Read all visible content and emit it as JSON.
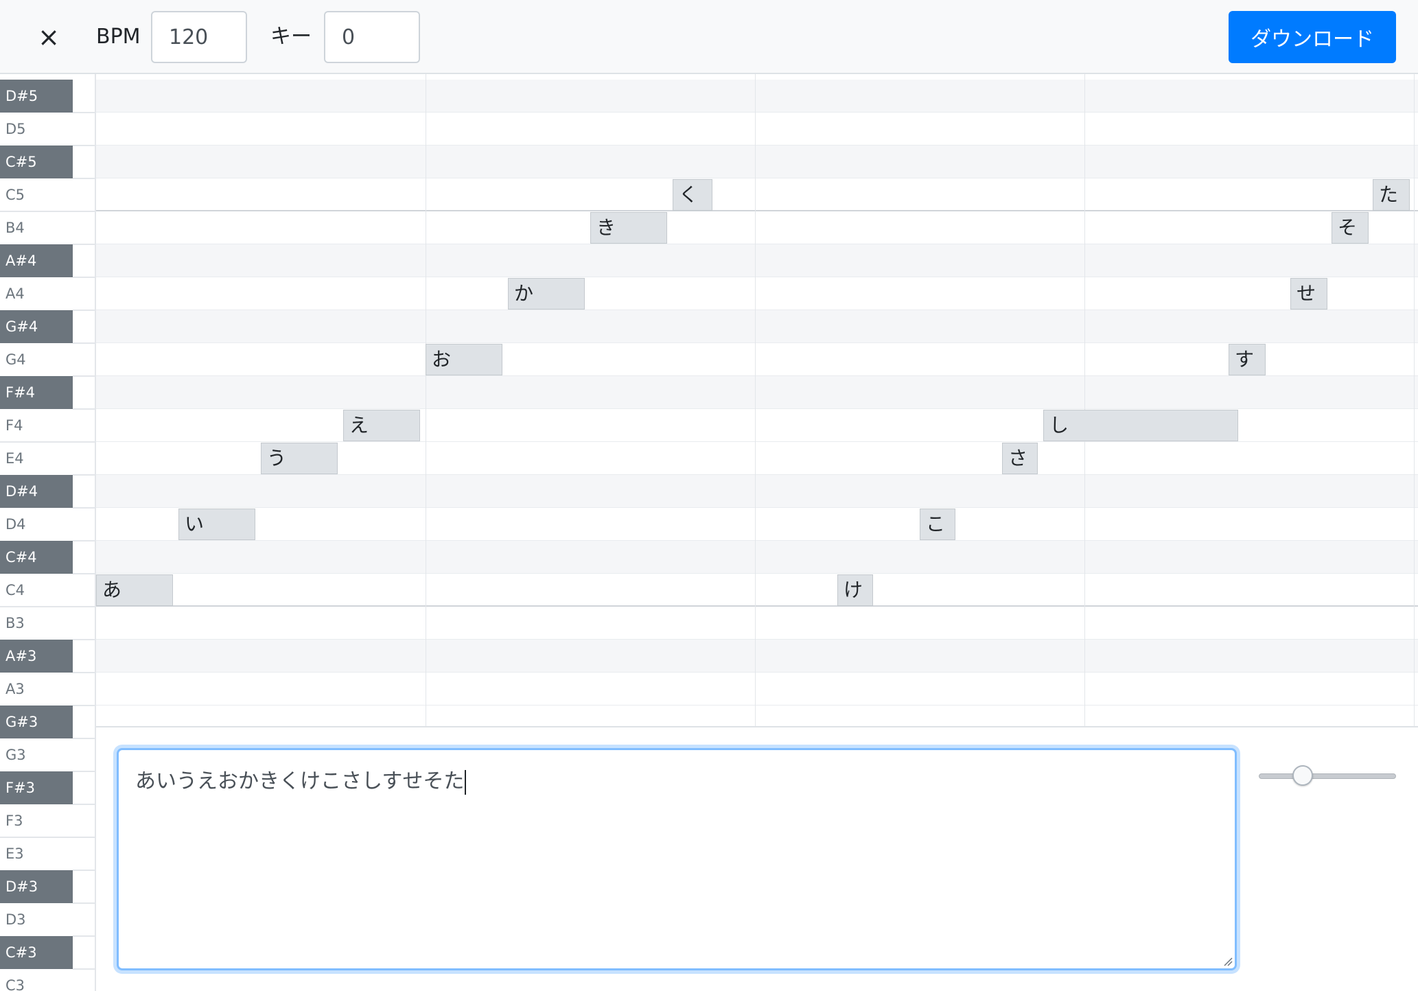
{
  "header": {
    "close_label": "×",
    "bpm_label": "BPM",
    "bpm_value": "120",
    "key_label": "キー",
    "key_value": "0",
    "download_label": "ダウンロード"
  },
  "piano_keys": [
    {
      "name": "D#5",
      "black": true
    },
    {
      "name": "D5",
      "black": false
    },
    {
      "name": "C#5",
      "black": true
    },
    {
      "name": "C5",
      "black": false
    },
    {
      "name": "B4",
      "black": false
    },
    {
      "name": "A#4",
      "black": true
    },
    {
      "name": "A4",
      "black": false
    },
    {
      "name": "G#4",
      "black": true
    },
    {
      "name": "G4",
      "black": false
    },
    {
      "name": "F#4",
      "black": true
    },
    {
      "name": "F4",
      "black": false
    },
    {
      "name": "E4",
      "black": false
    },
    {
      "name": "D#4",
      "black": true
    },
    {
      "name": "D4",
      "black": false
    },
    {
      "name": "C#4",
      "black": true
    },
    {
      "name": "C4",
      "black": false
    },
    {
      "name": "B3",
      "black": false
    },
    {
      "name": "A#3",
      "black": true
    },
    {
      "name": "A3",
      "black": false
    },
    {
      "name": "G#3",
      "black": true
    },
    {
      "name": "G3",
      "black": false
    },
    {
      "name": "F#3",
      "black": true
    },
    {
      "name": "F3",
      "black": false
    },
    {
      "name": "E3",
      "black": false
    },
    {
      "name": "D#3",
      "black": true
    },
    {
      "name": "D3",
      "black": false
    },
    {
      "name": "C#3",
      "black": true
    },
    {
      "name": "C3",
      "black": false
    }
  ],
  "notes": [
    {
      "lyric": "あ",
      "pitch": "C4"
    },
    {
      "lyric": "い",
      "pitch": "D4"
    },
    {
      "lyric": "う",
      "pitch": "E4"
    },
    {
      "lyric": "え",
      "pitch": "F4"
    },
    {
      "lyric": "お",
      "pitch": "G4"
    },
    {
      "lyric": "か",
      "pitch": "A4"
    },
    {
      "lyric": "き",
      "pitch": "B4"
    },
    {
      "lyric": "く",
      "pitch": "C5"
    },
    {
      "lyric": "け",
      "pitch": "C4"
    },
    {
      "lyric": "こ",
      "pitch": "D4"
    },
    {
      "lyric": "さ",
      "pitch": "E4"
    },
    {
      "lyric": "し",
      "pitch": "F4"
    },
    {
      "lyric": "す",
      "pitch": "G4"
    },
    {
      "lyric": "せ",
      "pitch": "A4"
    },
    {
      "lyric": "そ",
      "pitch": "B4"
    },
    {
      "lyric": "た",
      "pitch": "C5"
    }
  ],
  "lyrics_text": "あいうえおかきくけこさしすせそた"
}
